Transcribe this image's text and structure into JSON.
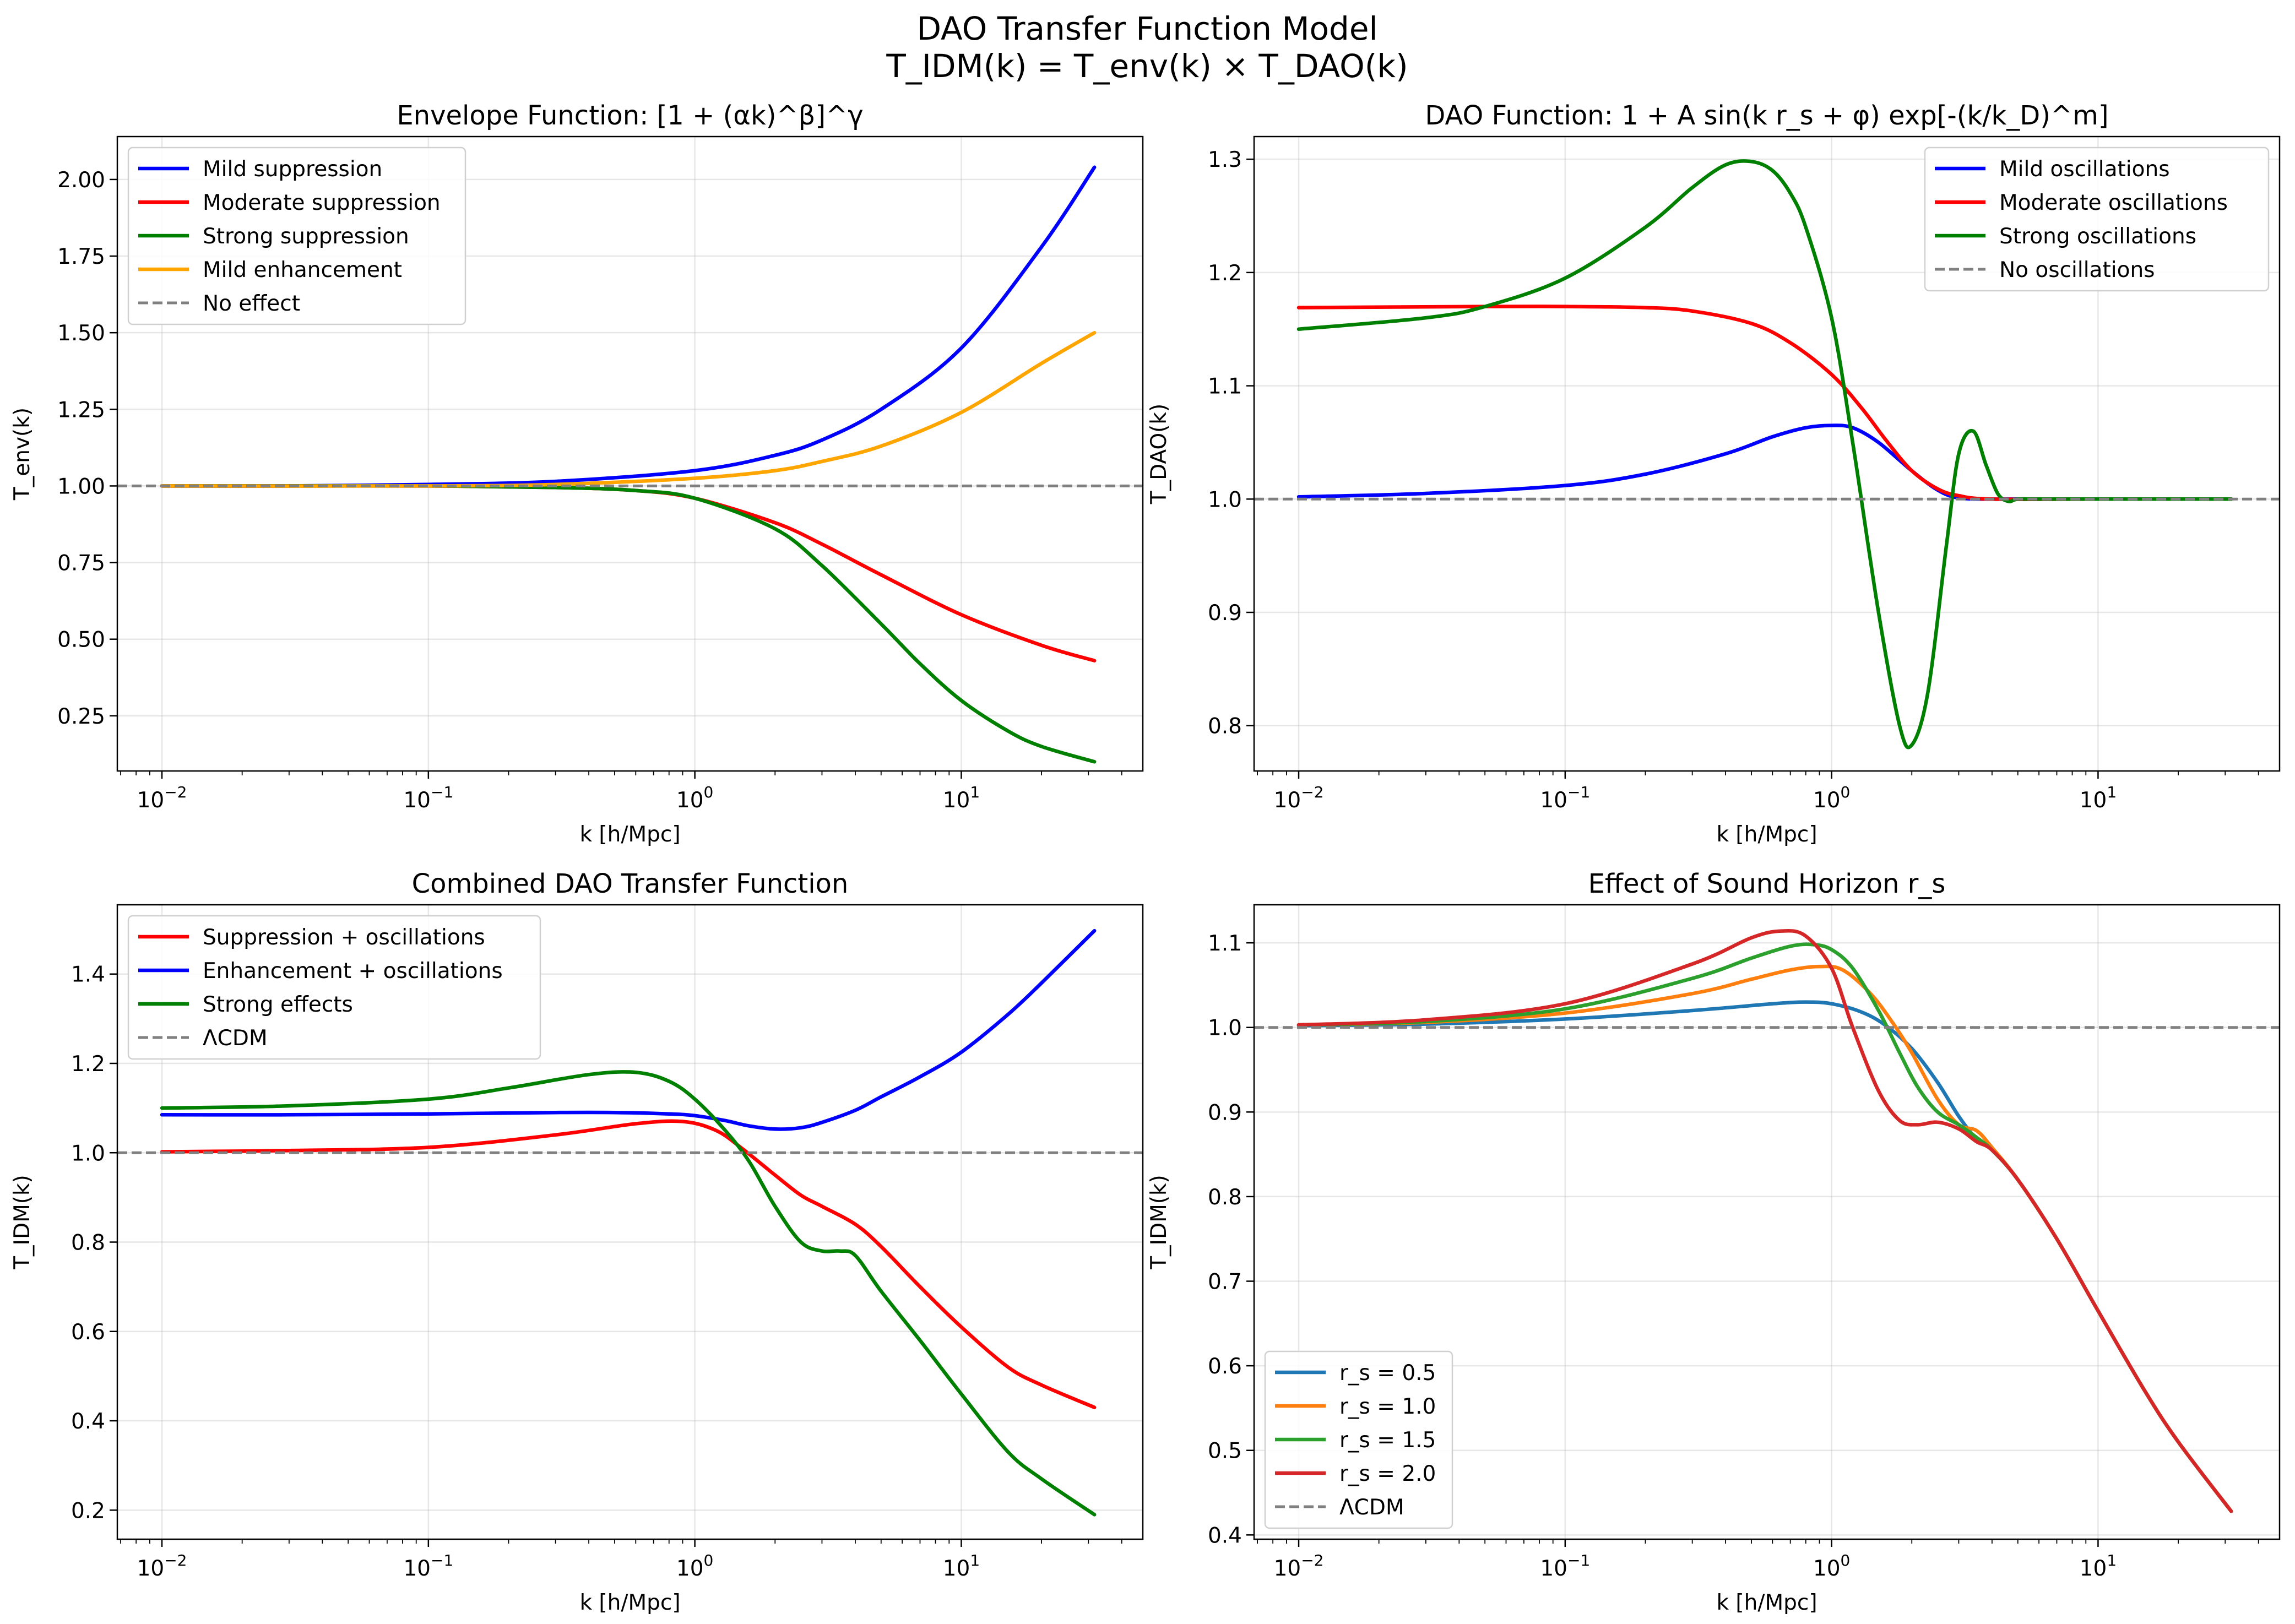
{
  "figure": {
    "suptitle_line1": "DAO Transfer Function Model",
    "suptitle_line2": "T_IDM(k) = T_env(k) × T_DAO(k)"
  },
  "chart_data": [
    {
      "type": "line",
      "title": "Envelope Function: [1 + (αk)^β]^γ",
      "xlabel": "k [h/Mpc]",
      "ylabel": "T_env(k)",
      "xscale": "log",
      "xlim": [
        0.0068,
        48
      ],
      "ylim": [
        0.07,
        2.14
      ],
      "xticks": [
        0.01,
        0.1,
        1,
        10
      ],
      "xtick_labels": [
        [
          "10",
          "−2"
        ],
        [
          "10",
          "−1"
        ],
        [
          "10",
          "0"
        ],
        [
          "10",
          "1"
        ]
      ],
      "yticks": [
        0.25,
        0.5,
        0.75,
        1.0,
        1.25,
        1.5,
        1.75,
        2.0
      ],
      "ytick_labels": [
        "0.25",
        "0.50",
        "0.75",
        "1.00",
        "1.25",
        "1.50",
        "1.75",
        "2.00"
      ],
      "grid": true,
      "legend_position": "upper-left",
      "series": [
        {
          "name": "Mild suppression",
          "color": "#0000ff",
          "style": "solid",
          "x": [
            0.01,
            0.03,
            0.1,
            0.3,
            1,
            2,
            3,
            5,
            10,
            20,
            31.6
          ],
          "y": [
            1.0,
            1.0,
            1.005,
            1.015,
            1.05,
            1.1,
            1.15,
            1.25,
            1.45,
            1.78,
            2.04
          ]
        },
        {
          "name": "Moderate suppression",
          "color": "#ff0000",
          "style": "solid",
          "x": [
            0.01,
            0.03,
            0.1,
            0.3,
            0.6,
            1,
            2,
            3,
            5,
            10,
            20,
            31.6
          ],
          "y": [
            1.0,
            1.0,
            1.0,
            0.995,
            0.985,
            0.96,
            0.88,
            0.81,
            0.71,
            0.58,
            0.48,
            0.43
          ]
        },
        {
          "name": "Strong suppression",
          "color": "#008000",
          "style": "solid",
          "x": [
            0.01,
            0.03,
            0.1,
            0.3,
            0.6,
            1,
            2,
            3,
            5,
            7,
            10,
            15,
            20,
            31.6
          ],
          "y": [
            1.0,
            1.0,
            1.0,
            0.995,
            0.985,
            0.96,
            0.86,
            0.74,
            0.55,
            0.42,
            0.3,
            0.2,
            0.15,
            0.1
          ]
        },
        {
          "name": "Mild enhancement",
          "color": "#ffa500",
          "style": "solid",
          "x": [
            0.01,
            0.1,
            0.3,
            1,
            2,
            3,
            5,
            10,
            20,
            31.6
          ],
          "y": [
            1.0,
            1.0,
            1.005,
            1.025,
            1.05,
            1.08,
            1.13,
            1.24,
            1.4,
            1.5
          ]
        },
        {
          "name": "No effect",
          "color": "#808080",
          "style": "dashed",
          "hline": 1.0
        }
      ]
    },
    {
      "type": "line",
      "title": "DAO Function: 1 + A sin(k r_s + φ) exp[-(k/k_D)^m]",
      "xlabel": "k [h/Mpc]",
      "ylabel": "T_DAO(k)",
      "xscale": "log",
      "xlim": [
        0.0068,
        48
      ],
      "ylim": [
        0.76,
        1.32
      ],
      "xticks": [
        0.01,
        0.1,
        1,
        10
      ],
      "xtick_labels": [
        [
          "10",
          "−2"
        ],
        [
          "10",
          "−1"
        ],
        [
          "10",
          "0"
        ],
        [
          "10",
          "1"
        ]
      ],
      "yticks": [
        0.8,
        0.9,
        1.0,
        1.1,
        1.2,
        1.3
      ],
      "ytick_labels": [
        "0.8",
        "0.9",
        "1.0",
        "1.1",
        "1.2",
        "1.3"
      ],
      "grid": true,
      "legend_position": "upper-right",
      "series": [
        {
          "name": "Mild oscillations",
          "color": "#0000ff",
          "style": "solid",
          "x": [
            0.01,
            0.03,
            0.1,
            0.2,
            0.4,
            0.6,
            0.8,
            1.0,
            1.2,
            1.5,
            2.0,
            2.5,
            3.0,
            4.0,
            5.0,
            10,
            31.6
          ],
          "y": [
            1.002,
            1.005,
            1.012,
            1.022,
            1.04,
            1.055,
            1.063,
            1.065,
            1.063,
            1.05,
            1.025,
            1.008,
            1.001,
            1.0,
            1.0,
            1.0,
            1.0
          ]
        },
        {
          "name": "Moderate oscillations",
          "color": "#ff0000",
          "style": "solid",
          "x": [
            0.01,
            0.05,
            0.1,
            0.2,
            0.3,
            0.5,
            0.7,
            1.0,
            1.3,
            1.6,
            2.0,
            2.5,
            3.0,
            4.0,
            10,
            31.6
          ],
          "y": [
            1.169,
            1.17,
            1.17,
            1.169,
            1.166,
            1.155,
            1.138,
            1.11,
            1.08,
            1.052,
            1.025,
            1.009,
            1.003,
            1.0,
            1.0,
            1.0
          ]
        },
        {
          "name": "Strong oscillations",
          "color": "#008000",
          "style": "solid",
          "x": [
            0.01,
            0.03,
            0.05,
            0.1,
            0.2,
            0.3,
            0.4,
            0.5,
            0.6,
            0.7,
            0.8,
            1.0,
            1.2,
            1.5,
            1.8,
            2.0,
            2.3,
            2.7,
            3.0,
            3.4,
            3.8,
            4.2,
            4.6,
            5.0,
            6.0,
            10,
            31.6
          ],
          "y": [
            1.15,
            1.16,
            1.17,
            1.195,
            1.24,
            1.275,
            1.295,
            1.298,
            1.29,
            1.27,
            1.24,
            1.16,
            1.05,
            0.9,
            0.8,
            0.783,
            0.83,
            0.96,
            1.04,
            1.06,
            1.03,
            1.005,
            0.998,
            1.0,
            1.0,
            1.0,
            1.0
          ]
        },
        {
          "name": "No oscillations",
          "color": "#808080",
          "style": "dashed",
          "hline": 1.0
        }
      ]
    },
    {
      "type": "line",
      "title": "Combined DAO Transfer Function",
      "xlabel": "k [h/Mpc]",
      "ylabel": "T_IDM(k)",
      "xscale": "log",
      "xlim": [
        0.0068,
        48
      ],
      "ylim": [
        0.135,
        1.555
      ],
      "xticks": [
        0.01,
        0.1,
        1,
        10
      ],
      "xtick_labels": [
        [
          "10",
          "−2"
        ],
        [
          "10",
          "−1"
        ],
        [
          "10",
          "0"
        ],
        [
          "10",
          "1"
        ]
      ],
      "yticks": [
        0.2,
        0.4,
        0.6,
        0.8,
        1.0,
        1.2,
        1.4
      ],
      "ytick_labels": [
        "0.2",
        "0.4",
        "0.6",
        "0.8",
        "1.0",
        "1.2",
        "1.4"
      ],
      "grid": true,
      "legend_position": "upper-left",
      "series": [
        {
          "name": "Suppression + oscillations",
          "color": "#ff0000",
          "style": "solid",
          "x": [
            0.01,
            0.03,
            0.1,
            0.3,
            0.6,
            0.9,
            1.2,
            1.5,
            2.0,
            2.5,
            3.0,
            4.0,
            5.0,
            7.0,
            10,
            15,
            20,
            31.6
          ],
          "y": [
            1.002,
            1.005,
            1.012,
            1.04,
            1.065,
            1.07,
            1.05,
            1.01,
            0.95,
            0.905,
            0.88,
            0.84,
            0.79,
            0.7,
            0.61,
            0.52,
            0.48,
            0.43
          ]
        },
        {
          "name": "Enhancement + oscillations",
          "color": "#0000ff",
          "style": "solid",
          "x": [
            0.01,
            0.03,
            0.1,
            0.3,
            0.5,
            0.8,
            1.0,
            1.3,
            1.6,
            2.0,
            2.5,
            3.0,
            4.0,
            5.0,
            7.0,
            10,
            15,
            20,
            31.6
          ],
          "y": [
            1.085,
            1.085,
            1.087,
            1.09,
            1.09,
            1.087,
            1.083,
            1.072,
            1.06,
            1.053,
            1.056,
            1.068,
            1.095,
            1.125,
            1.17,
            1.225,
            1.31,
            1.38,
            1.497
          ]
        },
        {
          "name": "Strong effects",
          "color": "#008000",
          "style": "solid",
          "x": [
            0.01,
            0.03,
            0.1,
            0.2,
            0.4,
            0.6,
            0.8,
            1.0,
            1.3,
            1.6,
            2.0,
            2.5,
            3.0,
            3.5,
            4.0,
            5.0,
            7.0,
            10,
            15,
            20,
            31.6
          ],
          "y": [
            1.1,
            1.105,
            1.12,
            1.145,
            1.175,
            1.18,
            1.16,
            1.12,
            1.05,
            0.98,
            0.88,
            0.8,
            0.78,
            0.78,
            0.77,
            0.69,
            0.58,
            0.46,
            0.33,
            0.27,
            0.19
          ]
        },
        {
          "name": "ΛCDM",
          "color": "#808080",
          "style": "dashed",
          "hline": 1.0
        }
      ]
    },
    {
      "type": "line",
      "title": "Effect of Sound Horizon r_s",
      "xlabel": "k [h/Mpc]",
      "ylabel": "T_IDM(k)",
      "xscale": "log",
      "xlim": [
        0.0068,
        48
      ],
      "ylim": [
        0.395,
        1.145
      ],
      "xticks": [
        0.01,
        0.1,
        1,
        10
      ],
      "xtick_labels": [
        [
          "10",
          "−2"
        ],
        [
          "10",
          "−1"
        ],
        [
          "10",
          "0"
        ],
        [
          "10",
          "1"
        ]
      ],
      "yticks": [
        0.4,
        0.5,
        0.6,
        0.7,
        0.8,
        0.9,
        1.0,
        1.1
      ],
      "ytick_labels": [
        "0.4",
        "0.5",
        "0.6",
        "0.7",
        "0.8",
        "0.9",
        "1.0",
        "1.1"
      ],
      "grid": true,
      "legend_position": "lower-left",
      "series": [
        {
          "name": "r_s = 0.5",
          "color": "#1f77b4",
          "style": "solid",
          "x": [
            0.01,
            0.03,
            0.1,
            0.3,
            0.6,
            0.8,
            1.0,
            1.3,
            1.6,
            2.0,
            2.5,
            3.0,
            3.5,
            4.0,
            5.0,
            7.0,
            10,
            15,
            20,
            31.6
          ],
          "y": [
            1.002,
            1.004,
            1.01,
            1.02,
            1.028,
            1.03,
            1.028,
            1.018,
            1.002,
            0.975,
            0.935,
            0.895,
            0.868,
            0.855,
            0.82,
            0.75,
            0.665,
            0.57,
            0.51,
            0.428
          ]
        },
        {
          "name": "r_s = 1.0",
          "color": "#ff7f0e",
          "style": "solid",
          "x": [
            0.01,
            0.03,
            0.1,
            0.3,
            0.5,
            0.7,
            0.9,
            1.1,
            1.4,
            1.7,
            2.0,
            2.5,
            3.0,
            3.5,
            4.0,
            5.0,
            7.0,
            10,
            15,
            20,
            31.6
          ],
          "y": [
            1.003,
            1.006,
            1.017,
            1.04,
            1.057,
            1.068,
            1.072,
            1.068,
            1.04,
            1.005,
            0.97,
            0.915,
            0.885,
            0.878,
            0.858,
            0.82,
            0.75,
            0.665,
            0.57,
            0.51,
            0.428
          ]
        },
        {
          "name": "r_s = 1.5",
          "color": "#2ca02c",
          "style": "solid",
          "x": [
            0.01,
            0.03,
            0.1,
            0.3,
            0.5,
            0.7,
            0.85,
            1.0,
            1.2,
            1.5,
            1.8,
            2.1,
            2.5,
            3.0,
            3.5,
            4.0,
            5.0,
            7.0,
            10,
            15,
            20,
            31.6
          ],
          "y": [
            1.003,
            1.007,
            1.022,
            1.058,
            1.082,
            1.096,
            1.098,
            1.092,
            1.07,
            1.02,
            0.97,
            0.93,
            0.9,
            0.885,
            0.87,
            0.855,
            0.82,
            0.75,
            0.665,
            0.57,
            0.51,
            0.428
          ]
        },
        {
          "name": "r_s = 2.0",
          "color": "#d62728",
          "style": "solid",
          "x": [
            0.01,
            0.03,
            0.1,
            0.3,
            0.5,
            0.65,
            0.8,
            1.0,
            1.2,
            1.5,
            1.8,
            2.1,
            2.5,
            3.0,
            3.5,
            4.0,
            5.0,
            7.0,
            10,
            15,
            20,
            31.6
          ],
          "y": [
            1.003,
            1.009,
            1.028,
            1.075,
            1.106,
            1.114,
            1.108,
            1.07,
            1.0,
            0.925,
            0.89,
            0.885,
            0.888,
            0.88,
            0.865,
            0.855,
            0.82,
            0.75,
            0.665,
            0.57,
            0.51,
            0.428
          ]
        },
        {
          "name": "ΛCDM",
          "color": "#808080",
          "style": "dashed",
          "hline": 1.0
        }
      ]
    }
  ]
}
